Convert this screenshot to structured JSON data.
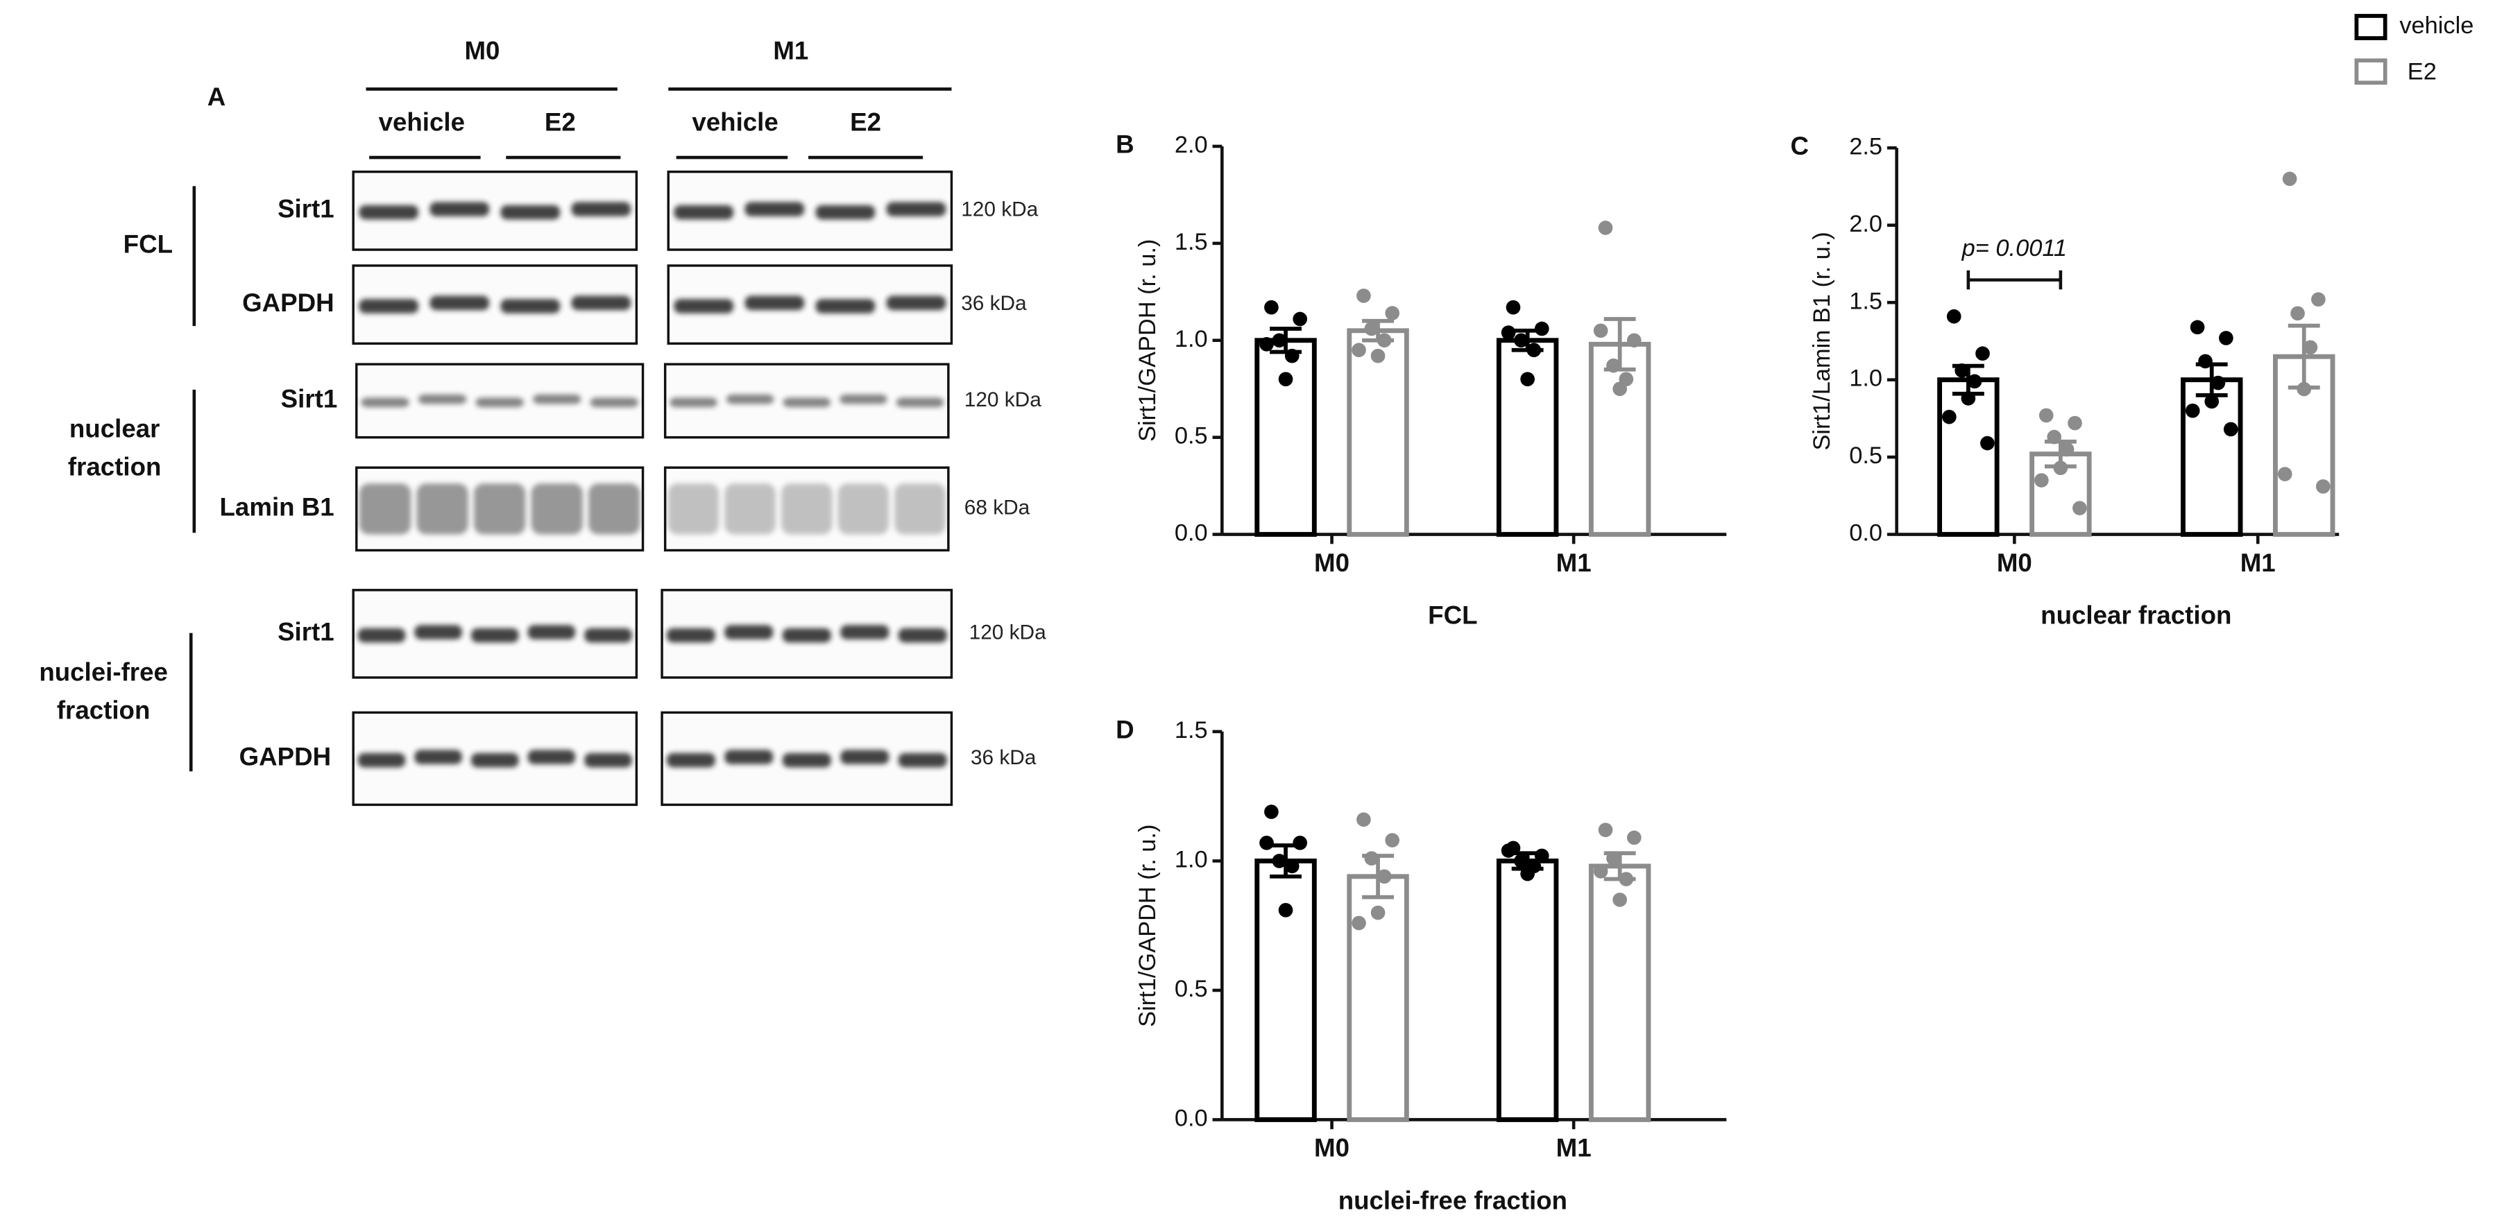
{
  "figure": {
    "panel_a": {
      "label": "A",
      "groups": [
        {
          "name": "M0",
          "treatments": [
            "vehicle",
            "E2"
          ]
        },
        {
          "name": "M1",
          "treatments": [
            "vehicle",
            "E2"
          ]
        }
      ],
      "rows": [
        {
          "fraction": "FCL",
          "blots": [
            {
              "protein": "Sirt1",
              "size": "120 kDa"
            },
            {
              "protein": "GAPDH",
              "size": "36 kDa"
            }
          ]
        },
        {
          "fraction": "nuclear fraction",
          "blots": [
            {
              "protein": "Sirt1",
              "size": "120 kDa"
            },
            {
              "protein": "Lamin B1",
              "size": "68 kDa"
            }
          ]
        },
        {
          "fraction": "nuclei-free fraction",
          "blots": [
            {
              "protein": "Sirt1",
              "size": "120 kDa"
            },
            {
              "protein": "GAPDH",
              "size": "36 kDa"
            }
          ]
        }
      ]
    }
  },
  "chart_data": [
    {
      "type": "bar",
      "panel": "B",
      "ylabel": "Sirt1/GAPDH (r. u.)",
      "xlabel": "FCL",
      "categories": [
        "M0",
        "M1"
      ],
      "ylim": [
        0,
        2
      ],
      "yticks": [
        {
          "value": 0,
          "label": "0.0"
        },
        0.5,
        {
          "value": 1,
          "label": "1.0"
        },
        1.5,
        {
          "value": 2,
          "label": "2.0"
        }
      ],
      "series": [
        {
          "name": "vehicle",
          "color": "#000000",
          "values": [
            1.0,
            1.0
          ],
          "errors": [
            0.06,
            0.05
          ],
          "points": [
            [
              1.17,
              1.11,
              1.0,
              0.92,
              0.8,
              0.98
            ],
            [
              1.17,
              1.06,
              1.0,
              0.95,
              0.8,
              1.04
            ]
          ]
        },
        {
          "name": "E2",
          "color": "#8c8c8c",
          "values": [
            1.05,
            0.98
          ],
          "errors": [
            0.05,
            0.13
          ],
          "points": [
            [
              1.23,
              1.14,
              1.06,
              1.0,
              0.92,
              0.95
            ],
            [
              1.58,
              1.0,
              0.87,
              0.8,
              0.75,
              1.05
            ]
          ]
        }
      ]
    },
    {
      "type": "bar",
      "panel": "C",
      "ylabel": "Sirt1/Lamin B1 (r. u.)",
      "xlabel": "nuclear fraction",
      "categories": [
        "M0",
        "M1"
      ],
      "ylim": [
        0,
        2.5
      ],
      "yticks": [
        {
          "value": 0,
          "label": "0.0"
        },
        0.5,
        {
          "value": 1,
          "label": "1.0"
        },
        1.5,
        {
          "value": 2,
          "label": "2.0"
        },
        2.5
      ],
      "annotation": "p= 0.0011",
      "series": [
        {
          "color": "#000000",
          "values": [
            1.0,
            1.0
          ],
          "errors": [
            0.09,
            0.1
          ],
          "points": [
            [
              1.41,
              1.17,
              1.06,
              0.99,
              0.88,
              0.76,
              0.59
            ],
            [
              1.34,
              1.27,
              1.12,
              0.98,
              0.86,
              0.8,
              0.68
            ]
          ]
        },
        {
          "color": "#8c8c8c",
          "values": [
            0.52,
            1.15
          ],
          "errors": [
            0.08,
            0.2
          ],
          "points": [
            [
              0.77,
              0.72,
              0.63,
              0.55,
              0.43,
              0.35,
              0.17
            ],
            [
              2.3,
              1.52,
              1.43,
              1.21,
              0.94,
              0.39,
              0.31
            ]
          ]
        }
      ]
    },
    {
      "type": "bar",
      "panel": "D",
      "ylabel": "Sirt1/GAPDH (r. u.)",
      "xlabel": "nuclei-free fraction",
      "categories": [
        "M0",
        "M1"
      ],
      "ylim": [
        0,
        1.5
      ],
      "yticks": [
        {
          "value": 0,
          "label": "0.0"
        },
        0.5,
        {
          "value": 1,
          "label": "1.0"
        },
        1.5
      ],
      "series": [
        {
          "color": "#000000",
          "values": [
            1.0,
            1.0
          ],
          "errors": [
            0.06,
            0.03
          ],
          "points": [
            [
              1.19,
              1.07,
              1.0,
              0.98,
              0.81,
              1.07
            ],
            [
              1.05,
              1.02,
              1.0,
              0.98,
              0.95,
              1.04
            ]
          ]
        },
        {
          "color": "#8c8c8c",
          "values": [
            0.94,
            0.98
          ],
          "errors": [
            0.08,
            0.05
          ],
          "points": [
            [
              1.16,
              1.08,
              1.01,
              0.94,
              0.8,
              0.76
            ],
            [
              1.12,
              1.09,
              1.01,
              0.93,
              0.85,
              0.96
            ]
          ]
        }
      ]
    }
  ]
}
